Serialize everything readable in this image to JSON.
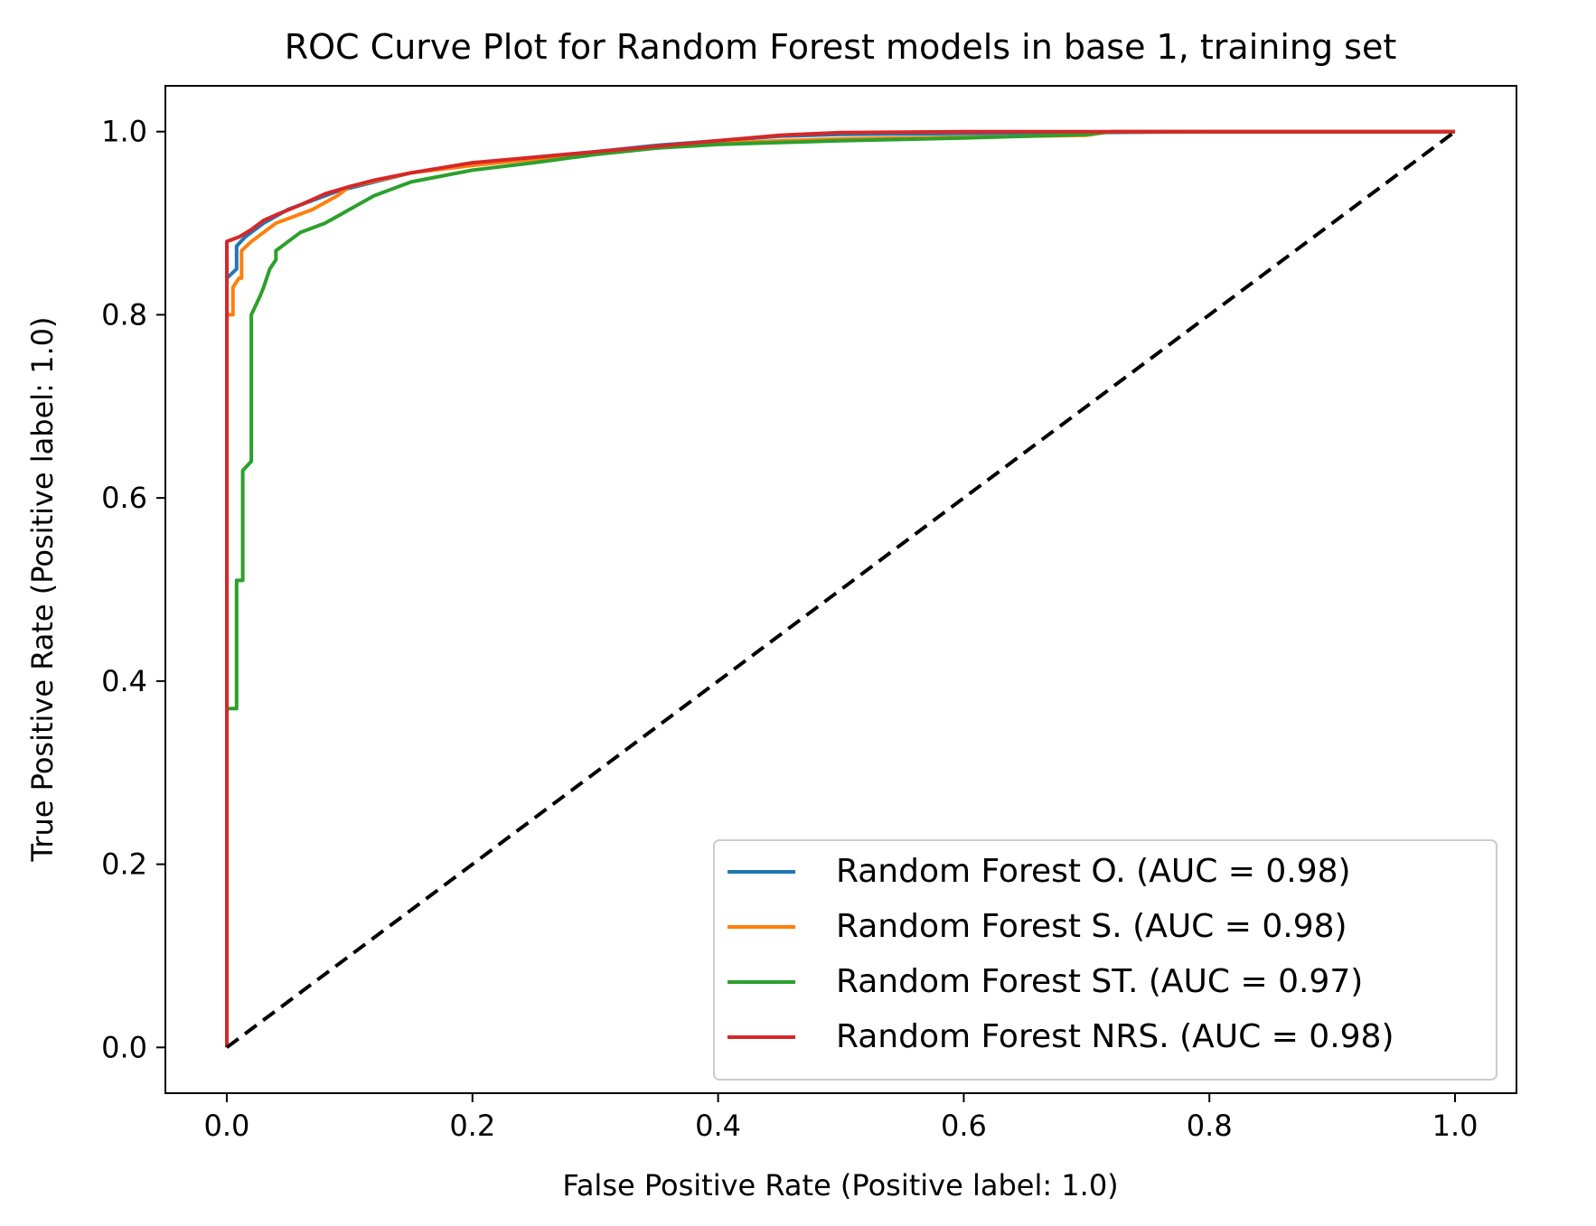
{
  "chart_data": {
    "type": "line",
    "title": "ROC Curve Plot for Random Forest models in base 1, training set",
    "xlabel": "False Positive Rate (Positive label: 1.0)",
    "ylabel": "True Positive Rate (Positive label: 1.0)",
    "xlim": [
      -0.05,
      1.05
    ],
    "ylim": [
      -0.05,
      1.05
    ],
    "xticks": [
      "0.0",
      "0.2",
      "0.4",
      "0.6",
      "0.8",
      "1.0"
    ],
    "yticks": [
      "0.0",
      "0.2",
      "0.4",
      "0.6",
      "0.8",
      "1.0"
    ],
    "grid": false,
    "legend_position": "lower-right",
    "series": [
      {
        "name": "Random Forest O. (AUC = 0.98)",
        "color": "#1f77b4",
        "points": [
          [
            0,
            0
          ],
          [
            0,
            0.84
          ],
          [
            0.008,
            0.85
          ],
          [
            0.008,
            0.875
          ],
          [
            0.015,
            0.885
          ],
          [
            0.02,
            0.89
          ],
          [
            0.03,
            0.9
          ],
          [
            0.05,
            0.915
          ],
          [
            0.07,
            0.925
          ],
          [
            0.09,
            0.935
          ],
          [
            0.12,
            0.945
          ],
          [
            0.15,
            0.955
          ],
          [
            0.2,
            0.965
          ],
          [
            0.25,
            0.972
          ],
          [
            0.3,
            0.978
          ],
          [
            0.35,
            0.985
          ],
          [
            0.4,
            0.99
          ],
          [
            0.45,
            0.995
          ],
          [
            0.5,
            0.997
          ],
          [
            0.6,
            0.998
          ],
          [
            0.7,
            0.999
          ],
          [
            0.8,
            1.0
          ],
          [
            1.0,
            1.0
          ]
        ]
      },
      {
        "name": "Random Forest S. (AUC = 0.98)",
        "color": "#ff7f0e",
        "points": [
          [
            0,
            0
          ],
          [
            0,
            0.8
          ],
          [
            0.005,
            0.8
          ],
          [
            0.005,
            0.83
          ],
          [
            0.01,
            0.84
          ],
          [
            0.012,
            0.84
          ],
          [
            0.012,
            0.87
          ],
          [
            0.02,
            0.88
          ],
          [
            0.03,
            0.89
          ],
          [
            0.04,
            0.9
          ],
          [
            0.05,
            0.905
          ],
          [
            0.07,
            0.915
          ],
          [
            0.09,
            0.93
          ],
          [
            0.1,
            0.94
          ],
          [
            0.15,
            0.955
          ],
          [
            0.2,
            0.963
          ],
          [
            0.25,
            0.97
          ],
          [
            0.3,
            0.976
          ],
          [
            0.35,
            0.982
          ],
          [
            0.4,
            0.987
          ],
          [
            0.45,
            0.99
          ],
          [
            0.5,
            0.992
          ],
          [
            0.6,
            0.994
          ],
          [
            0.7,
            0.996
          ],
          [
            0.72,
            1.0
          ],
          [
            1.0,
            1.0
          ]
        ]
      },
      {
        "name": "Random Forest ST. (AUC = 0.97)",
        "color": "#2ca02c",
        "points": [
          [
            0,
            0
          ],
          [
            0,
            0.37
          ],
          [
            0.008,
            0.37
          ],
          [
            0.008,
            0.51
          ],
          [
            0.013,
            0.51
          ],
          [
            0.013,
            0.63
          ],
          [
            0.02,
            0.64
          ],
          [
            0.02,
            0.8
          ],
          [
            0.027,
            0.82
          ],
          [
            0.03,
            0.83
          ],
          [
            0.035,
            0.85
          ],
          [
            0.04,
            0.86
          ],
          [
            0.04,
            0.87
          ],
          [
            0.05,
            0.88
          ],
          [
            0.06,
            0.89
          ],
          [
            0.08,
            0.9
          ],
          [
            0.1,
            0.915
          ],
          [
            0.12,
            0.93
          ],
          [
            0.15,
            0.945
          ],
          [
            0.2,
            0.958
          ],
          [
            0.25,
            0.966
          ],
          [
            0.3,
            0.975
          ],
          [
            0.35,
            0.982
          ],
          [
            0.4,
            0.986
          ],
          [
            0.45,
            0.988
          ],
          [
            0.5,
            0.99
          ],
          [
            0.6,
            0.993
          ],
          [
            0.65,
            0.995
          ],
          [
            0.7,
            0.997
          ],
          [
            0.72,
            1.0
          ],
          [
            1.0,
            1.0
          ]
        ]
      },
      {
        "name": "Random Forest NRS. (AUC = 0.98)",
        "color": "#d62728",
        "points": [
          [
            0,
            0
          ],
          [
            0,
            0.88
          ],
          [
            0.01,
            0.885
          ],
          [
            0.02,
            0.893
          ],
          [
            0.03,
            0.903
          ],
          [
            0.04,
            0.909
          ],
          [
            0.06,
            0.92
          ],
          [
            0.08,
            0.932
          ],
          [
            0.1,
            0.94
          ],
          [
            0.12,
            0.947
          ],
          [
            0.15,
            0.955
          ],
          [
            0.2,
            0.966
          ],
          [
            0.25,
            0.972
          ],
          [
            0.3,
            0.978
          ],
          [
            0.35,
            0.984
          ],
          [
            0.4,
            0.99
          ],
          [
            0.45,
            0.996
          ],
          [
            0.5,
            0.999
          ],
          [
            0.6,
            1.0
          ],
          [
            1.0,
            1.0
          ]
        ]
      }
    ],
    "reference_line": {
      "style": "dashed",
      "color": "#000000",
      "points": [
        [
          0,
          0
        ],
        [
          1,
          1
        ]
      ]
    }
  }
}
